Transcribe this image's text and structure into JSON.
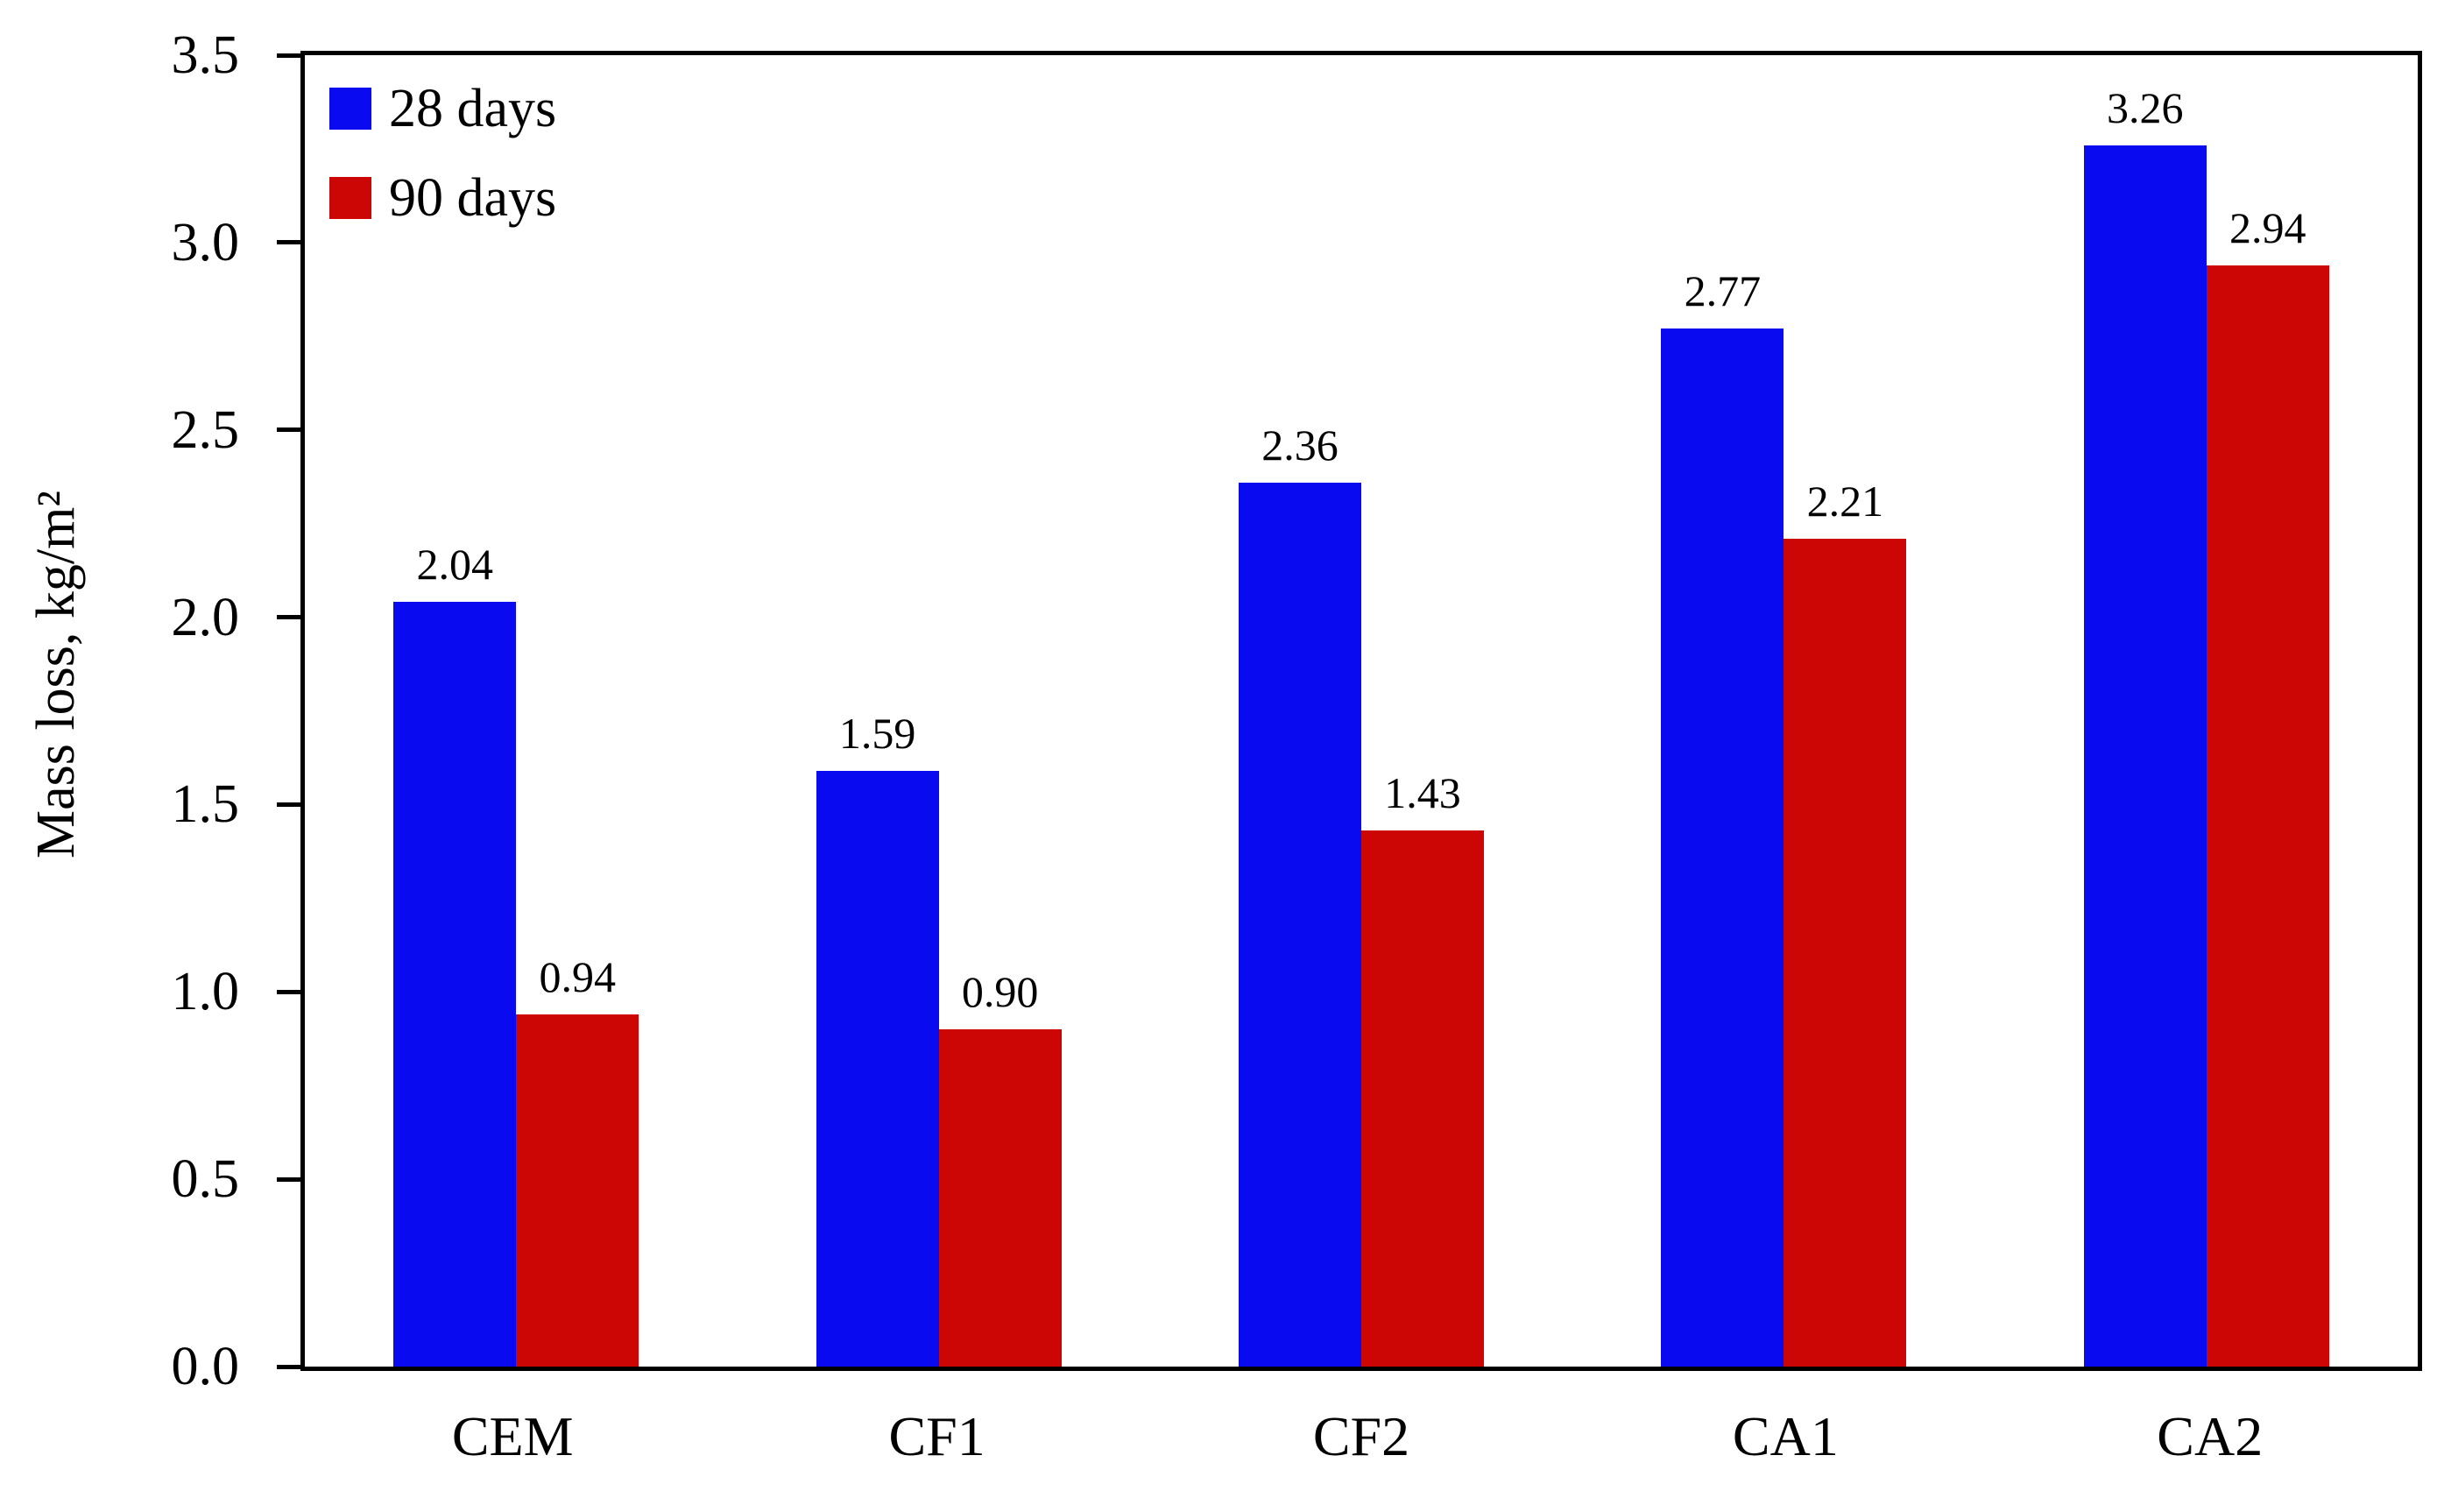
{
  "chart_data": {
    "type": "bar",
    "categories": [
      "CEM",
      "CF1",
      "CF2",
      "CA1",
      "CA2"
    ],
    "series": [
      {
        "name": "28 days",
        "color": "#0a0af0",
        "values": [
          2.04,
          1.59,
          2.36,
          2.77,
          3.26
        ]
      },
      {
        "name": "90 days",
        "color": "#cc0505",
        "values": [
          0.94,
          0.9,
          1.43,
          2.21,
          2.94
        ]
      }
    ],
    "title": "",
    "xlabel": "",
    "ylabel": "Mass loss, kg/m²",
    "ylim": [
      0,
      3.5
    ],
    "ytick_step": 0.5,
    "yticks": [
      "0.0",
      "0.5",
      "1.0",
      "1.5",
      "2.0",
      "2.5",
      "3.0",
      "3.5"
    ],
    "value_label_decimals": 2,
    "grid": false,
    "legend_position": "top-left",
    "frame": true
  },
  "colors": {
    "axis": "#000000",
    "text": "#000000",
    "background": "#ffffff"
  }
}
